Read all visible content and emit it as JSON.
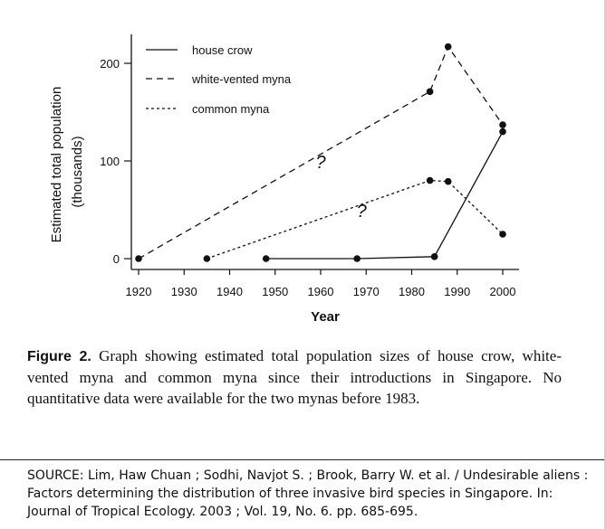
{
  "chart_data": {
    "type": "line",
    "title": "",
    "xlabel": "Year",
    "ylabel": [
      "Estimated total population",
      "(thousands)"
    ],
    "xlim": [
      1918,
      2004
    ],
    "ylim": [
      -5,
      230
    ],
    "x_ticks": [
      1920,
      1930,
      1940,
      1950,
      1960,
      1970,
      1980,
      1990,
      2000
    ],
    "y_ticks": [
      0,
      100,
      200
    ],
    "grid": false,
    "legend": "top-left",
    "series": [
      {
        "name": "house crow",
        "style": "solid",
        "points": [
          [
            1948,
            0
          ],
          [
            1968,
            0
          ],
          [
            1985,
            2
          ],
          [
            2000,
            130
          ]
        ],
        "markers": [
          [
            1948,
            0
          ],
          [
            1968,
            0
          ],
          [
            1985,
            2
          ],
          [
            2000,
            130
          ]
        ]
      },
      {
        "name": "white-vented myna",
        "style": "dashed",
        "points": [
          [
            1920,
            0
          ],
          [
            1984,
            171
          ],
          [
            1988,
            217
          ],
          [
            2000,
            137
          ]
        ],
        "markers": [
          [
            1920,
            0
          ],
          [
            1984,
            171
          ],
          [
            1988,
            217
          ],
          [
            2000,
            137
          ]
        ]
      },
      {
        "name": "common myna",
        "style": "dotted",
        "points": [
          [
            1935,
            0
          ],
          [
            1984,
            80
          ],
          [
            1988,
            79
          ],
          [
            2000,
            25
          ]
        ],
        "markers": [
          [
            1935,
            0
          ],
          [
            1984,
            80
          ],
          [
            1988,
            79
          ],
          [
            2000,
            25
          ]
        ]
      }
    ],
    "annotations": [
      {
        "text": "?",
        "x": 1960,
        "y": 100
      },
      {
        "text": "?",
        "x": 1969,
        "y": 50
      }
    ]
  },
  "caption": {
    "label": "Figure 2.",
    "text": " Graph showing estimated total population sizes of house crow, white-vented myna and common myna since their introductions in Singapore. No quantitative data were available for the two mynas before 1983."
  },
  "source": "SOURCE: Lim, Haw Chuan ; Sodhi, Navjot S. ; Brook, Barry W. et al. / Undesirable aliens : Factors determining the distribution of three invasive bird species in Singapore. In: Journal of Tropical Ecology. 2003 ; Vol. 19, No. 6. pp. 685-695."
}
